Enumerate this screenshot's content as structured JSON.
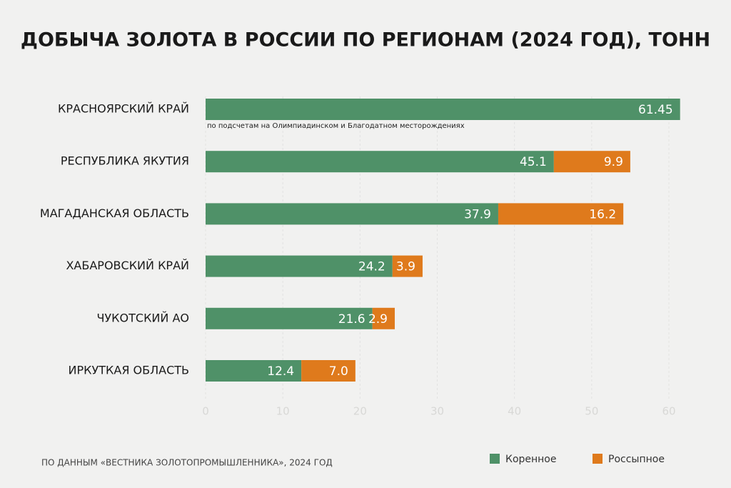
{
  "chart_data": {
    "type": "stacked-bar-horizontal",
    "title": "ДОБЫЧА ЗОЛОТА В РОССИИ ПО РЕГИОНАМ (2024 ГОД), ТОНН",
    "categories": [
      "КРАСНОЯРСКИЙ КРАЙ",
      "РЕСПУБЛИКА ЯКУТИЯ",
      "МАГАДАНСКАЯ ОБЛАСТЬ",
      "ХАБАРОВСКИЙ КРАЙ",
      "ЧУКОТСКИЙ АО",
      "ИРКУТКАЯ ОБЛАСТЬ"
    ],
    "series": [
      {
        "name": "Коренное",
        "color": "#4f9168",
        "values": [
          61.45,
          45.1,
          37.9,
          24.2,
          21.6,
          12.4
        ]
      },
      {
        "name": "Россыпное",
        "color": "#df7a1c",
        "values": [
          null,
          9.9,
          16.2,
          3.9,
          2.9,
          7
        ],
        "value_labels": [
          null,
          "9.9",
          "16.2",
          "3.9",
          "2.9",
          "7.0"
        ]
      }
    ],
    "xlim": [
      0,
      60
    ],
    "xticks": [
      0,
      10,
      20,
      30,
      40,
      50,
      60
    ],
    "grid": true,
    "annotation": "по подсчетам на Олимпиадинском и Благодатном месторождениях",
    "source": "ПО ДАННЫМ «ВЕСТНИКА ЗОЛОТОПРОМЫШЛЕННИКА», 2024 ГОД",
    "legend": "bottom-right"
  }
}
